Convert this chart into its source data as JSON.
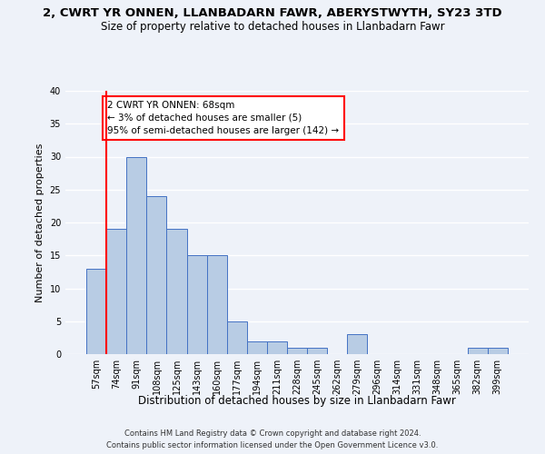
{
  "title": "2, CWRT YR ONNEN, LLANBADARN FAWR, ABERYSTWYTH, SY23 3TD",
  "subtitle": "Size of property relative to detached houses in Llanbadarn Fawr",
  "xlabel": "Distribution of detached houses by size in Llanbadarn Fawr",
  "ylabel": "Number of detached properties",
  "categories": [
    "57sqm",
    "74sqm",
    "91sqm",
    "108sqm",
    "125sqm",
    "143sqm",
    "160sqm",
    "177sqm",
    "194sqm",
    "211sqm",
    "228sqm",
    "245sqm",
    "262sqm",
    "279sqm",
    "296sqm",
    "314sqm",
    "331sqm",
    "348sqm",
    "365sqm",
    "382sqm",
    "399sqm"
  ],
  "values": [
    13,
    19,
    30,
    24,
    19,
    15,
    15,
    5,
    2,
    2,
    1,
    1,
    0,
    3,
    0,
    0,
    0,
    0,
    0,
    1,
    1
  ],
  "bar_color": "#b8cce4",
  "bar_edge_color": "#4472c4",
  "annotation_text": "2 CWRT YR ONNEN: 68sqm\n← 3% of detached houses are smaller (5)\n95% of semi-detached houses are larger (142) →",
  "vline_x": 0.5,
  "ylim": [
    0,
    40
  ],
  "yticks": [
    0,
    5,
    10,
    15,
    20,
    25,
    30,
    35,
    40
  ],
  "footer_line1": "Contains HM Land Registry data © Crown copyright and database right 2024.",
  "footer_line2": "Contains public sector information licensed under the Open Government Licence v3.0.",
  "bg_color": "#eef2f9",
  "grid_color": "#ffffff",
  "title_fontsize": 9.5,
  "subtitle_fontsize": 8.5,
  "xlabel_fontsize": 8.5,
  "ylabel_fontsize": 8,
  "tick_fontsize": 7,
  "annotation_fontsize": 7.5,
  "footer_fontsize": 6
}
